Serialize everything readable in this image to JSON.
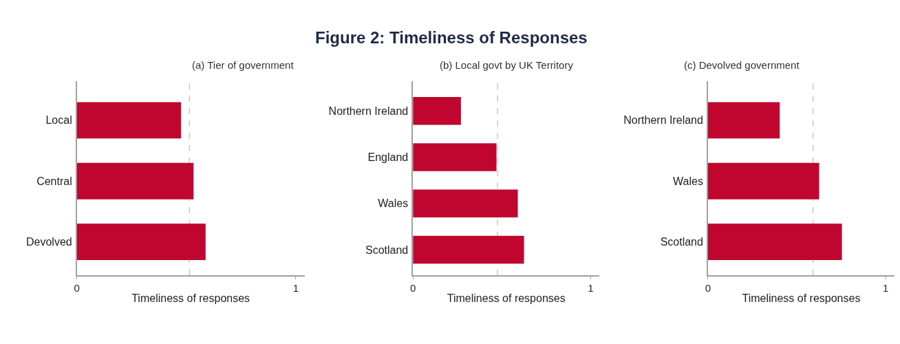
{
  "chart_data": [
    {
      "type": "bar",
      "orientation": "horizontal",
      "subtitle": "(a) Tier of government",
      "xlabel": "Timeliness of responses",
      "categories": [
        "Local",
        "Central",
        "Devolved"
      ],
      "values": [
        0.476,
        0.533,
        0.588
      ],
      "color": "#c0062f",
      "xlim": [
        0,
        1.04
      ],
      "xticks": [
        0,
        1
      ],
      "ref_lines": [
        {
          "axis": "x",
          "value": 0.514,
          "color": "#c8c8c8",
          "line_style": "dashed"
        }
      ]
    },
    {
      "type": "bar",
      "orientation": "horizontal",
      "title": "Figure 2: Timeliness of Responses",
      "subtitle": "(b) Local govt by UK Territory",
      "xlabel": "Timeliness of responses",
      "categories": [
        "Northern Ireland",
        "England",
        "Wales",
        "Scotland"
      ],
      "values": [
        0.27,
        0.47,
        0.59,
        0.625
      ],
      "color": "#c0062f",
      "xlim": [
        0,
        1.05
      ],
      "xticks": [
        0,
        1
      ],
      "ref_lines": [
        {
          "axis": "x",
          "value": 0.476,
          "color": "#c8c8c8",
          "line_style": "dashed"
        }
      ]
    },
    {
      "type": "bar",
      "orientation": "horizontal",
      "subtitle": "(c) Devolved government",
      "xlabel": "Timeliness of responses",
      "categories": [
        "Northern Ireland",
        "Wales",
        "Scotland"
      ],
      "values": [
        0.404,
        0.626,
        0.754
      ],
      "color": "#c0062f",
      "xlim": [
        0,
        1.05
      ],
      "xticks": [
        0,
        1
      ],
      "ref_lines": [
        {
          "axis": "x",
          "value": 0.592,
          "color": "#c8c8c8",
          "line_style": "dashed"
        }
      ]
    }
  ]
}
